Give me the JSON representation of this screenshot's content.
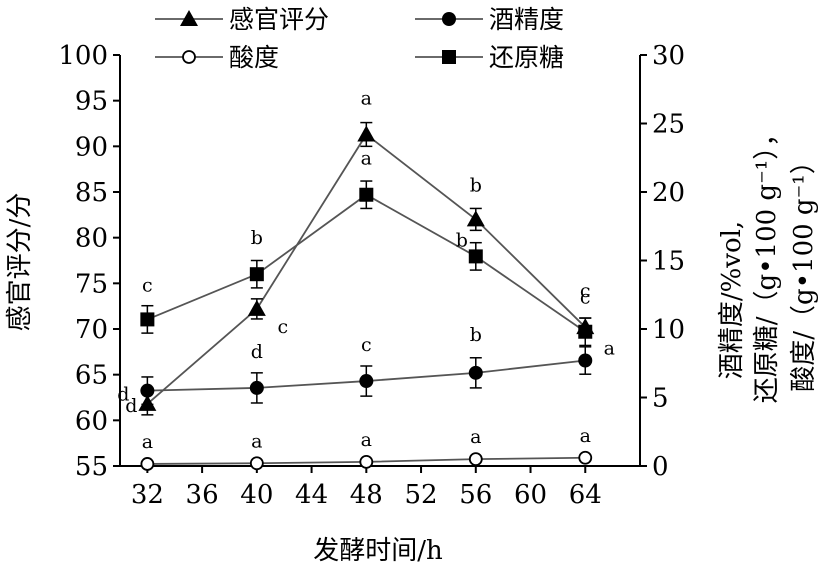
{
  "chart_data": {
    "type": "line",
    "x": [
      32,
      40,
      48,
      56,
      64
    ],
    "xlabel": "发酵时间/h",
    "xlim": [
      30,
      68
    ],
    "xticks": [
      32,
      36,
      40,
      44,
      48,
      52,
      56,
      60,
      64
    ],
    "ylabel_left": "感官评分/分",
    "ylim_left": [
      55,
      100
    ],
    "yticks_left": [
      55,
      60,
      65,
      70,
      75,
      80,
      85,
      90,
      95,
      100
    ],
    "ylabel_right_lines": [
      "酒精度/%vol,",
      "还原糖/（g•100 g⁻¹），",
      "酸度/（g•100 g⁻¹）"
    ],
    "ylim_right": [
      0,
      30
    ],
    "yticks_right": [
      0,
      5,
      10,
      15,
      20,
      25,
      30
    ],
    "legend": "top, two rows",
    "series": [
      {
        "name": "感官评分",
        "axis": "left",
        "marker": "triangle-filled",
        "values": [
          61.8,
          72.2,
          91.3,
          82.0,
          70.2
        ],
        "errors": [
          1.2,
          1.1,
          1.3,
          1.2,
          1.0
        ],
        "sig_labels": [
          "d",
          "c",
          "a",
          "b",
          "c"
        ]
      },
      {
        "name": "酒精度",
        "axis": "right",
        "marker": "circle-filled",
        "values": [
          5.5,
          5.7,
          6.2,
          6.8,
          7.7
        ],
        "errors": [
          1.0,
          1.1,
          1.1,
          1.1,
          1.0
        ],
        "sig_labels": [
          "d",
          "d",
          "c",
          "b",
          "a"
        ]
      },
      {
        "name": "酸度",
        "axis": "right",
        "marker": "circle-open",
        "values": [
          0.15,
          0.2,
          0.3,
          0.5,
          0.6
        ],
        "errors": [
          0,
          0,
          0,
          0,
          0
        ],
        "sig_labels": [
          "a",
          "a",
          "a",
          "a",
          "a"
        ]
      },
      {
        "name": "还原糖",
        "axis": "right",
        "marker": "square-filled",
        "values": [
          10.7,
          14.0,
          19.8,
          15.3,
          9.8
        ],
        "errors": [
          1.0,
          1.0,
          1.0,
          1.0,
          1.0
        ],
        "sig_labels": [
          "c",
          "b",
          "a",
          "b",
          "c"
        ]
      }
    ]
  }
}
